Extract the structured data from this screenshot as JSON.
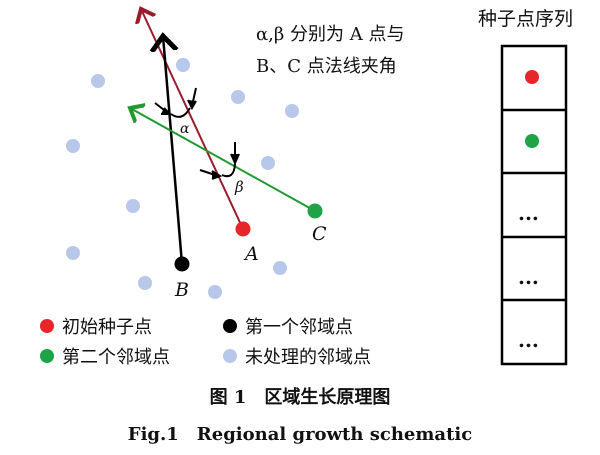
{
  "annotation": {
    "line1": "α,β 分别为 A 点与",
    "line2": "B、C 点法线夹角"
  },
  "labels": {
    "A": "A",
    "B": "B",
    "C": "C",
    "alpha": "α",
    "beta": "β"
  },
  "sequence": {
    "title": "种子点序列",
    "ellipsis": "..."
  },
  "legend": [
    {
      "label": "初始种子点",
      "color": "#e8262a"
    },
    {
      "label": "第一个邻域点",
      "color": "#000000"
    },
    {
      "label": "第二个邻域点",
      "color": "#1fa347"
    },
    {
      "label": "未处理的邻域点",
      "color": "#b7c8ea"
    }
  ],
  "caption": {
    "cn": "图 1　区域生长原理图",
    "en": "Fig.1　Regional growth schematic"
  },
  "colors": {
    "normal_A": "#9b1b2a",
    "normal_B": "#000000",
    "normal_C": "#1f9a2f"
  }
}
